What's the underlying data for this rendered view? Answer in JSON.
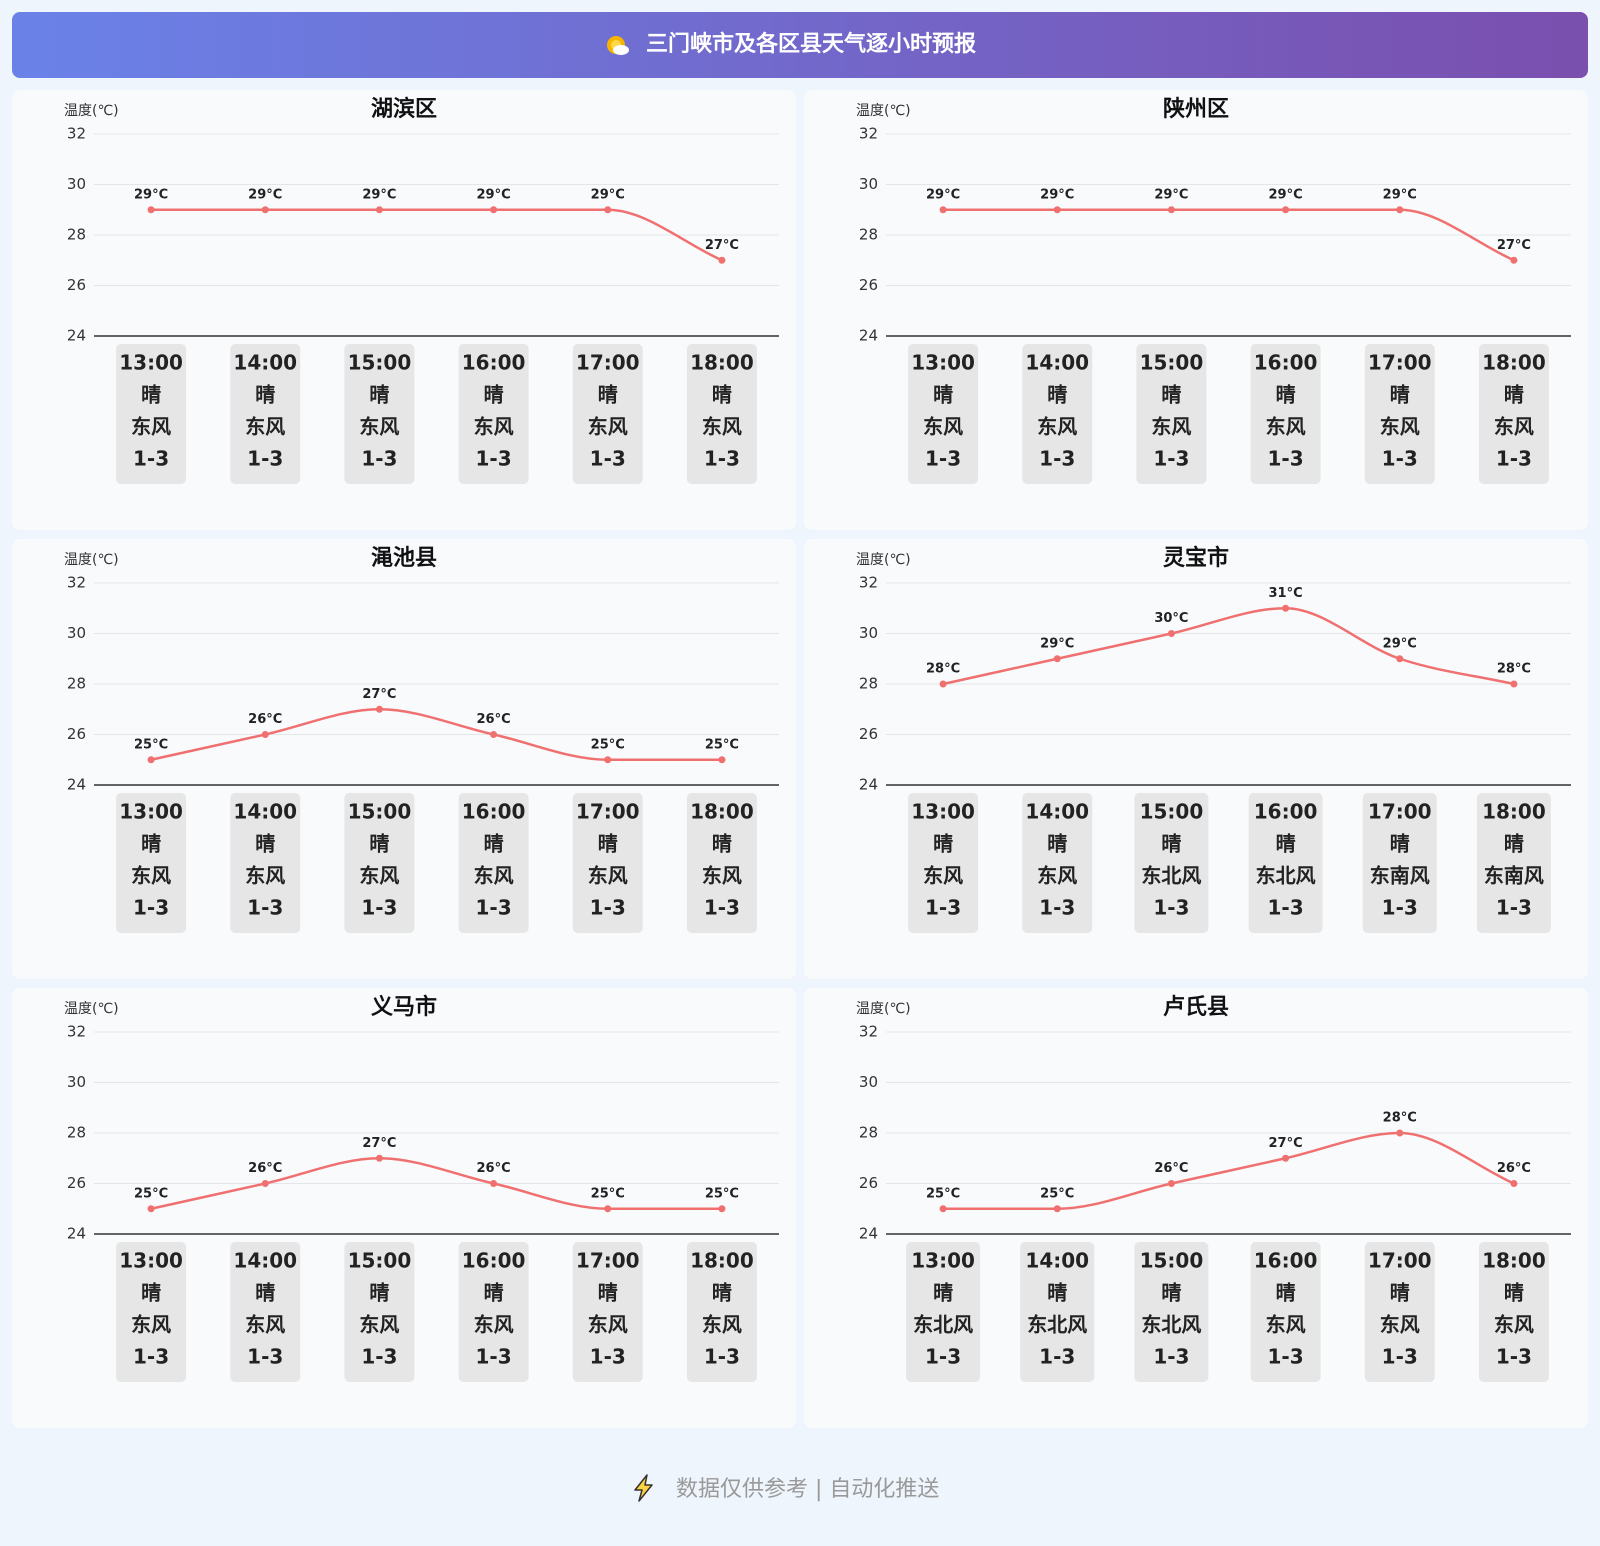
{
  "header": {
    "title": "三门峡市及各区县天气逐小时预报"
  },
  "chart_data": [
    {
      "type": "line",
      "title": "湖滨区",
      "y_label": "温度(℃)",
      "categories": [
        "13:00",
        "14:00",
        "15:00",
        "16:00",
        "17:00",
        "18:00"
      ],
      "values": [
        29,
        29,
        29,
        29,
        29,
        27
      ],
      "value_labels": [
        "29°C",
        "29°C",
        "29°C",
        "29°C",
        "29°C",
        "27°C"
      ],
      "weather": [
        "晴",
        "晴",
        "晴",
        "晴",
        "晴",
        "晴"
      ],
      "wind": [
        "东风",
        "东风",
        "东风",
        "东风",
        "东风",
        "东风"
      ],
      "wind_level": [
        "1-3",
        "1-3",
        "1-3",
        "1-3",
        "1-3",
        "1-3"
      ],
      "ylim": [
        24,
        32
      ],
      "yticks": [
        24,
        26,
        28,
        30,
        32
      ],
      "color": "#f07070",
      "grid": true
    },
    {
      "type": "line",
      "title": "陕州区",
      "y_label": "温度(℃)",
      "categories": [
        "13:00",
        "14:00",
        "15:00",
        "16:00",
        "17:00",
        "18:00"
      ],
      "values": [
        29,
        29,
        29,
        29,
        29,
        27
      ],
      "value_labels": [
        "29°C",
        "29°C",
        "29°C",
        "29°C",
        "29°C",
        "27°C"
      ],
      "weather": [
        "晴",
        "晴",
        "晴",
        "晴",
        "晴",
        "晴"
      ],
      "wind": [
        "东风",
        "东风",
        "东风",
        "东风",
        "东风",
        "东风"
      ],
      "wind_level": [
        "1-3",
        "1-3",
        "1-3",
        "1-3",
        "1-3",
        "1-3"
      ],
      "ylim": [
        24,
        32
      ],
      "yticks": [
        24,
        26,
        28,
        30,
        32
      ],
      "color": "#f07070",
      "grid": true
    },
    {
      "type": "line",
      "title": "渑池县",
      "y_label": "温度(℃)",
      "categories": [
        "13:00",
        "14:00",
        "15:00",
        "16:00",
        "17:00",
        "18:00"
      ],
      "values": [
        25,
        26,
        27,
        26,
        25,
        25
      ],
      "value_labels": [
        "25°C",
        "26°C",
        "27°C",
        "26°C",
        "25°C",
        "25°C"
      ],
      "weather": [
        "晴",
        "晴",
        "晴",
        "晴",
        "晴",
        "晴"
      ],
      "wind": [
        "东风",
        "东风",
        "东风",
        "东风",
        "东风",
        "东风"
      ],
      "wind_level": [
        "1-3",
        "1-3",
        "1-3",
        "1-3",
        "1-3",
        "1-3"
      ],
      "ylim": [
        24,
        32
      ],
      "yticks": [
        24,
        26,
        28,
        30,
        32
      ],
      "color": "#f07070",
      "grid": true
    },
    {
      "type": "line",
      "title": "灵宝市",
      "y_label": "温度(℃)",
      "categories": [
        "13:00",
        "14:00",
        "15:00",
        "16:00",
        "17:00",
        "18:00"
      ],
      "values": [
        28,
        29,
        30,
        31,
        29,
        28
      ],
      "value_labels": [
        "28°C",
        "29°C",
        "30°C",
        "31°C",
        "29°C",
        "28°C"
      ],
      "weather": [
        "晴",
        "晴",
        "晴",
        "晴",
        "晴",
        "晴"
      ],
      "wind": [
        "东风",
        "东风",
        "东北风",
        "东北风",
        "东南风",
        "东南风"
      ],
      "wind_level": [
        "1-3",
        "1-3",
        "1-3",
        "1-3",
        "1-3",
        "1-3"
      ],
      "ylim": [
        24,
        32
      ],
      "yticks": [
        24,
        26,
        28,
        30,
        32
      ],
      "color": "#f07070",
      "grid": true
    },
    {
      "type": "line",
      "title": "义马市",
      "y_label": "温度(℃)",
      "categories": [
        "13:00",
        "14:00",
        "15:00",
        "16:00",
        "17:00",
        "18:00"
      ],
      "values": [
        25,
        26,
        27,
        26,
        25,
        25
      ],
      "value_labels": [
        "25°C",
        "26°C",
        "27°C",
        "26°C",
        "25°C",
        "25°C"
      ],
      "weather": [
        "晴",
        "晴",
        "晴",
        "晴",
        "晴",
        "晴"
      ],
      "wind": [
        "东风",
        "东风",
        "东风",
        "东风",
        "东风",
        "东风"
      ],
      "wind_level": [
        "1-3",
        "1-3",
        "1-3",
        "1-3",
        "1-3",
        "1-3"
      ],
      "ylim": [
        24,
        32
      ],
      "yticks": [
        24,
        26,
        28,
        30,
        32
      ],
      "color": "#f07070",
      "grid": true
    },
    {
      "type": "line",
      "title": "卢氏县",
      "y_label": "温度(℃)",
      "categories": [
        "13:00",
        "14:00",
        "15:00",
        "16:00",
        "17:00",
        "18:00"
      ],
      "values": [
        25,
        25,
        26,
        27,
        28,
        26
      ],
      "value_labels": [
        "25°C",
        "25°C",
        "26°C",
        "27°C",
        "28°C",
        "26°C"
      ],
      "weather": [
        "晴",
        "晴",
        "晴",
        "晴",
        "晴",
        "晴"
      ],
      "wind": [
        "东北风",
        "东北风",
        "东北风",
        "东风",
        "东风",
        "东风"
      ],
      "wind_level": [
        "1-3",
        "1-3",
        "1-3",
        "1-3",
        "1-3",
        "1-3"
      ],
      "ylim": [
        24,
        32
      ],
      "yticks": [
        24,
        26,
        28,
        30,
        32
      ],
      "color": "#f07070",
      "grid": true
    }
  ],
  "footer": {
    "text": "数据仅供参考 | 自动化推送"
  }
}
